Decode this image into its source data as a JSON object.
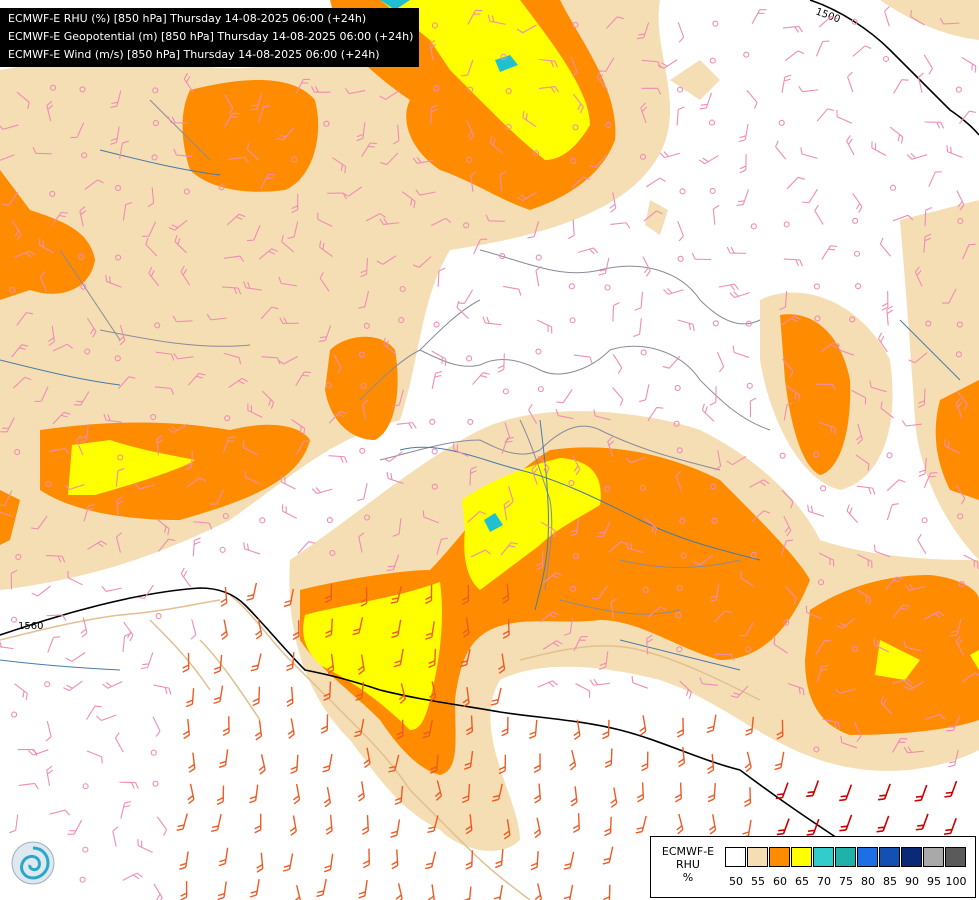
{
  "titles": [
    "ECMWF-E RHU (%) [850 hPa] Thursday 14-08-2025 06:00 (+24h)",
    "ECMWF-E Geopotential (m) [850 hPa] Thursday 14-08-2025 06:00 (+24h)",
    "ECMWF-E Wind (m/s) [850 hPa] Thursday 14-08-2025 06:00 (+24h)"
  ],
  "contours": {
    "left_label": "1560",
    "right_label": "1500"
  },
  "legend": {
    "model": "ECMWF-E",
    "variable": "RHU",
    "unit": "%",
    "colors": [
      "#ffffff",
      "#f5deb3",
      "#ff8c00",
      "#ffff00",
      "#33cccc",
      "#20b2aa",
      "#1e6fe6",
      "#1450b4",
      "#0a2a78",
      "#a9a9a9",
      "#5a5a5a"
    ],
    "ticks": [
      "50",
      "55",
      "60",
      "65",
      "70",
      "75",
      "80",
      "85",
      "90",
      "95",
      "100"
    ]
  },
  "palette": {
    "wheat": "#f5deb3",
    "orange": "#ff8c00",
    "yellow": "#ffff00",
    "cyan": "#20c0d0",
    "borders": "#8a8a9a",
    "rivers": "#4a7aa8",
    "coast": "#e0c090",
    "barb_light": "#f08cb4",
    "barb_mid": "#ee5a24",
    "barb_strong": "#cc0000"
  },
  "logo_icon": "ecmwf-swirl-icon"
}
